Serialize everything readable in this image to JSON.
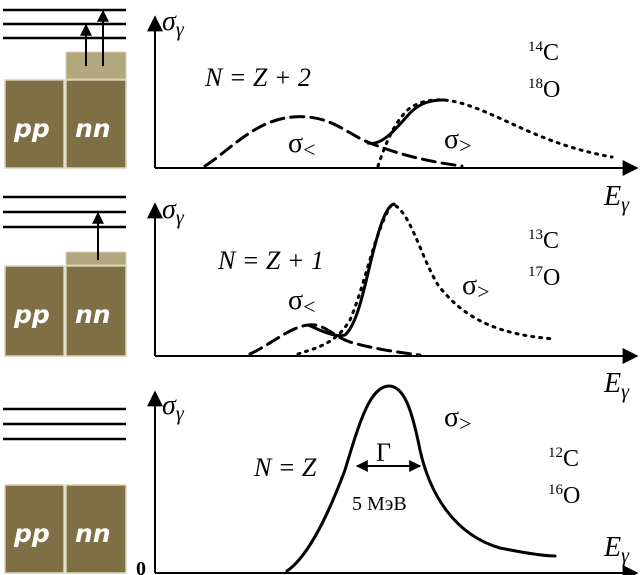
{
  "colors": {
    "block_fill": "#7e6f45",
    "block_edge": "#d9d2b8",
    "valence_fill": "#b3a77d",
    "ink": "#000000"
  },
  "panels": [
    {
      "relation": "N = Z + 2",
      "nuclei": [
        {
          "mass": "14",
          "element": "C"
        },
        {
          "mass": "18",
          "element": "O"
        }
      ],
      "y_label": "σ",
      "y_label_sub": "γ",
      "x_label": "E",
      "x_label_sub": "γ",
      "sigma_lower": {
        "sym": "σ",
        "sub": "<"
      },
      "sigma_upper": {
        "sym": "σ",
        "sub": ">"
      },
      "blocks": [
        "pp",
        "nn"
      ]
    },
    {
      "relation": "N = Z + 1",
      "nuclei": [
        {
          "mass": "13",
          "element": "C"
        },
        {
          "mass": "17",
          "element": "O"
        }
      ],
      "y_label": "σ",
      "y_label_sub": "γ",
      "x_label": "E",
      "x_label_sub": "γ",
      "sigma_lower": {
        "sym": "σ",
        "sub": "<"
      },
      "sigma_upper": {
        "sym": "σ",
        "sub": ">"
      },
      "blocks": [
        "pp",
        "nn"
      ]
    },
    {
      "relation": "N = Z",
      "nuclei": [
        {
          "mass": "12",
          "element": "C"
        },
        {
          "mass": "16",
          "element": "O"
        }
      ],
      "y_label": "σ",
      "y_label_sub": "γ",
      "x_label": "E",
      "x_label_sub": "γ",
      "sigma_upper": {
        "sym": "σ",
        "sub": ">"
      },
      "width_symbol": "Γ",
      "width_value": "5 МэВ",
      "origin": "0",
      "blocks": [
        "pp",
        "nn"
      ]
    }
  ]
}
